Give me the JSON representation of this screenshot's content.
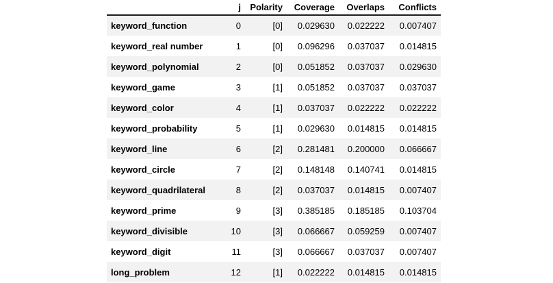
{
  "colors": {
    "stripe": "#f2f2f2",
    "header_rule": "#1c1c1c",
    "text": "#000000",
    "background": "#ffffff"
  },
  "chart_data": {
    "type": "table",
    "title": "",
    "index_name": "",
    "columns": [
      "j",
      "Polarity",
      "Coverage",
      "Overlaps",
      "Conflicts"
    ],
    "rows": [
      {
        "index": "keyword_function",
        "j": "0",
        "polarity": "[0]",
        "coverage": "0.029630",
        "overlaps": "0.022222",
        "conflicts": "0.007407"
      },
      {
        "index": "keyword_real number",
        "j": "1",
        "polarity": "[0]",
        "coverage": "0.096296",
        "overlaps": "0.037037",
        "conflicts": "0.014815"
      },
      {
        "index": "keyword_polynomial",
        "j": "2",
        "polarity": "[0]",
        "coverage": "0.051852",
        "overlaps": "0.037037",
        "conflicts": "0.029630"
      },
      {
        "index": "keyword_game",
        "j": "3",
        "polarity": "[1]",
        "coverage": "0.051852",
        "overlaps": "0.037037",
        "conflicts": "0.037037"
      },
      {
        "index": "keyword_color",
        "j": "4",
        "polarity": "[1]",
        "coverage": "0.037037",
        "overlaps": "0.022222",
        "conflicts": "0.022222"
      },
      {
        "index": "keyword_probability",
        "j": "5",
        "polarity": "[1]",
        "coverage": "0.029630",
        "overlaps": "0.014815",
        "conflicts": "0.014815"
      },
      {
        "index": "keyword_line",
        "j": "6",
        "polarity": "[2]",
        "coverage": "0.281481",
        "overlaps": "0.200000",
        "conflicts": "0.066667"
      },
      {
        "index": "keyword_circle",
        "j": "7",
        "polarity": "[2]",
        "coverage": "0.148148",
        "overlaps": "0.140741",
        "conflicts": "0.014815"
      },
      {
        "index": "keyword_quadrilateral",
        "j": "8",
        "polarity": "[2]",
        "coverage": "0.037037",
        "overlaps": "0.014815",
        "conflicts": "0.007407"
      },
      {
        "index": "keyword_prime",
        "j": "9",
        "polarity": "[3]",
        "coverage": "0.385185",
        "overlaps": "0.185185",
        "conflicts": "0.103704"
      },
      {
        "index": "keyword_divisible",
        "j": "10",
        "polarity": "[3]",
        "coverage": "0.066667",
        "overlaps": "0.059259",
        "conflicts": "0.007407"
      },
      {
        "index": "keyword_digit",
        "j": "11",
        "polarity": "[3]",
        "coverage": "0.066667",
        "overlaps": "0.037037",
        "conflicts": "0.007407"
      },
      {
        "index": "long_problem",
        "j": "12",
        "polarity": "[1]",
        "coverage": "0.022222",
        "overlaps": "0.014815",
        "conflicts": "0.014815"
      }
    ]
  }
}
